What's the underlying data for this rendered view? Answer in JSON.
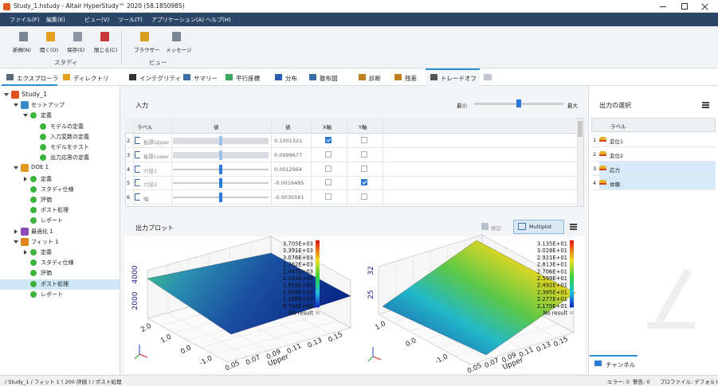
{
  "window": {
    "title": "Study_1.hstudy - Altair HyperStudy™ 2020 (58.1850985)"
  },
  "menu": [
    "ファイル(F)",
    "編集(E)",
    "ビュー(V)",
    "ツール(T)",
    "アプリケーション(A)",
    "ヘルプ(H)"
  ],
  "ribbon": {
    "groups": [
      {
        "label": "スタディ",
        "buttons": [
          "新規(N)",
          "開く(O)",
          "保存(S)",
          "閉じる(C)"
        ]
      },
      {
        "label": "ビュー",
        "buttons": [
          "ブラウザー",
          "メッセージ"
        ]
      }
    ]
  },
  "left_tabs": [
    "エクスプローラ",
    "ディレクトリ"
  ],
  "tree": {
    "label": "Study_1",
    "children": [
      {
        "label": "セットアップ",
        "children": [
          {
            "label": "定義",
            "children": [
              {
                "label": "モデルの定義"
              },
              {
                "label": "入力変数の定義"
              },
              {
                "label": "モデルをテスト"
              },
              {
                "label": "出力応答の定義"
              }
            ]
          }
        ]
      },
      {
        "label": "DOE 1",
        "children": [
          {
            "label": "定義",
            "expanded": false
          },
          {
            "label": "スタディ仕様"
          },
          {
            "label": "評価"
          },
          {
            "label": "ポスト処理"
          },
          {
            "label": "レポート"
          }
        ]
      },
      {
        "label": "最適化 1",
        "expanded": false
      },
      {
        "label": "フィット 1",
        "children": [
          {
            "label": "定義",
            "expanded": false
          },
          {
            "label": "スタディ仕様"
          },
          {
            "label": "評価"
          },
          {
            "label": "ポスト処理",
            "selected": true
          },
          {
            "label": "レポート"
          }
        ]
      }
    ]
  },
  "tabs": [
    "インテグリティ",
    "サマリー",
    "平行座標",
    "分布",
    "散布図",
    "診断",
    "残差",
    "トレードオフ"
  ],
  "active_tab": 7,
  "input": {
    "title": "入力",
    "slider_min": "最小",
    "slider_max": "最大",
    "columns": [
      "ラベル",
      "値",
      "値",
      "X軸",
      "Y軸"
    ],
    "rows": [
      {
        "index": 2,
        "label": "板厚Upper",
        "value": "0.1001321",
        "x_axis": true,
        "y_axis": false
      },
      {
        "index": 3,
        "label": "板厚Lower",
        "value": "0.0999677",
        "x_axis": false,
        "y_axis": false
      },
      {
        "index": 4,
        "label": "穴径1",
        "value": "0.0012964",
        "x_axis": false,
        "y_axis": false
      },
      {
        "index": 5,
        "label": "穴径2",
        "value": "-0.0016485",
        "x_axis": false,
        "y_axis": true
      },
      {
        "index": 6,
        "label": "幅",
        "value": "-0.0030561",
        "x_axis": false,
        "y_axis": false
      }
    ]
  },
  "output_plot": {
    "title": "出力プロット",
    "buttons": [
      "検証",
      "Multiplot"
    ],
    "plots": [
      {
        "legend": [
          "3.705E+03",
          "3.391E+03",
          "3.076E+03",
          "2.762E+03",
          "2.447E+03",
          "2.133E+03",
          "1.818E+03",
          "1.503E+03",
          "1.189E+03",
          "8.744E+02",
          "No result"
        ],
        "z_ticks": [
          "4000",
          "2000"
        ],
        "depth_ticks": [
          "2.0",
          "1.0",
          "0.0",
          "-1.0"
        ],
        "x_ticks": [
          "0.05",
          "0.07",
          "0.09",
          "0.11",
          "0.13",
          "0.15"
        ],
        "x_label": "Upper"
      },
      {
        "legend": [
          "3.135E+01",
          "3.028E+01",
          "2.921E+01",
          "2.813E+01",
          "2.706E+01",
          "2.599E+01",
          "2.492E+01",
          "2.385E+01",
          "2.277E+01",
          "2.170E+01",
          "No result"
        ],
        "z_ticks": [
          "32",
          "25"
        ],
        "depth_ticks": [
          "1.0",
          "0.0",
          "-1.0"
        ],
        "x_ticks": [
          "0.05",
          "0.07",
          "0.09",
          "0.11",
          "0.13",
          "0.15"
        ],
        "x_label": "Upper"
      }
    ]
  },
  "output_selection": {
    "title": "出力の選択",
    "column": "ラベル",
    "rows": [
      {
        "index": 1,
        "label": "変位1",
        "selected": false
      },
      {
        "index": 2,
        "label": "変位2",
        "selected": false
      },
      {
        "index": 3,
        "label": "応力",
        "selected": true
      },
      {
        "index": 4,
        "label": "体積",
        "selected": true
      }
    ]
  },
  "channel_tab": "チャンネル",
  "status": {
    "path": "/ Study_1 / フィット 1 ( 200 評価 ) / ポスト処理",
    "errors": "エラー: 0",
    "warnings": "警告: 0",
    "profile": "プロファイル: デフォルト"
  }
}
